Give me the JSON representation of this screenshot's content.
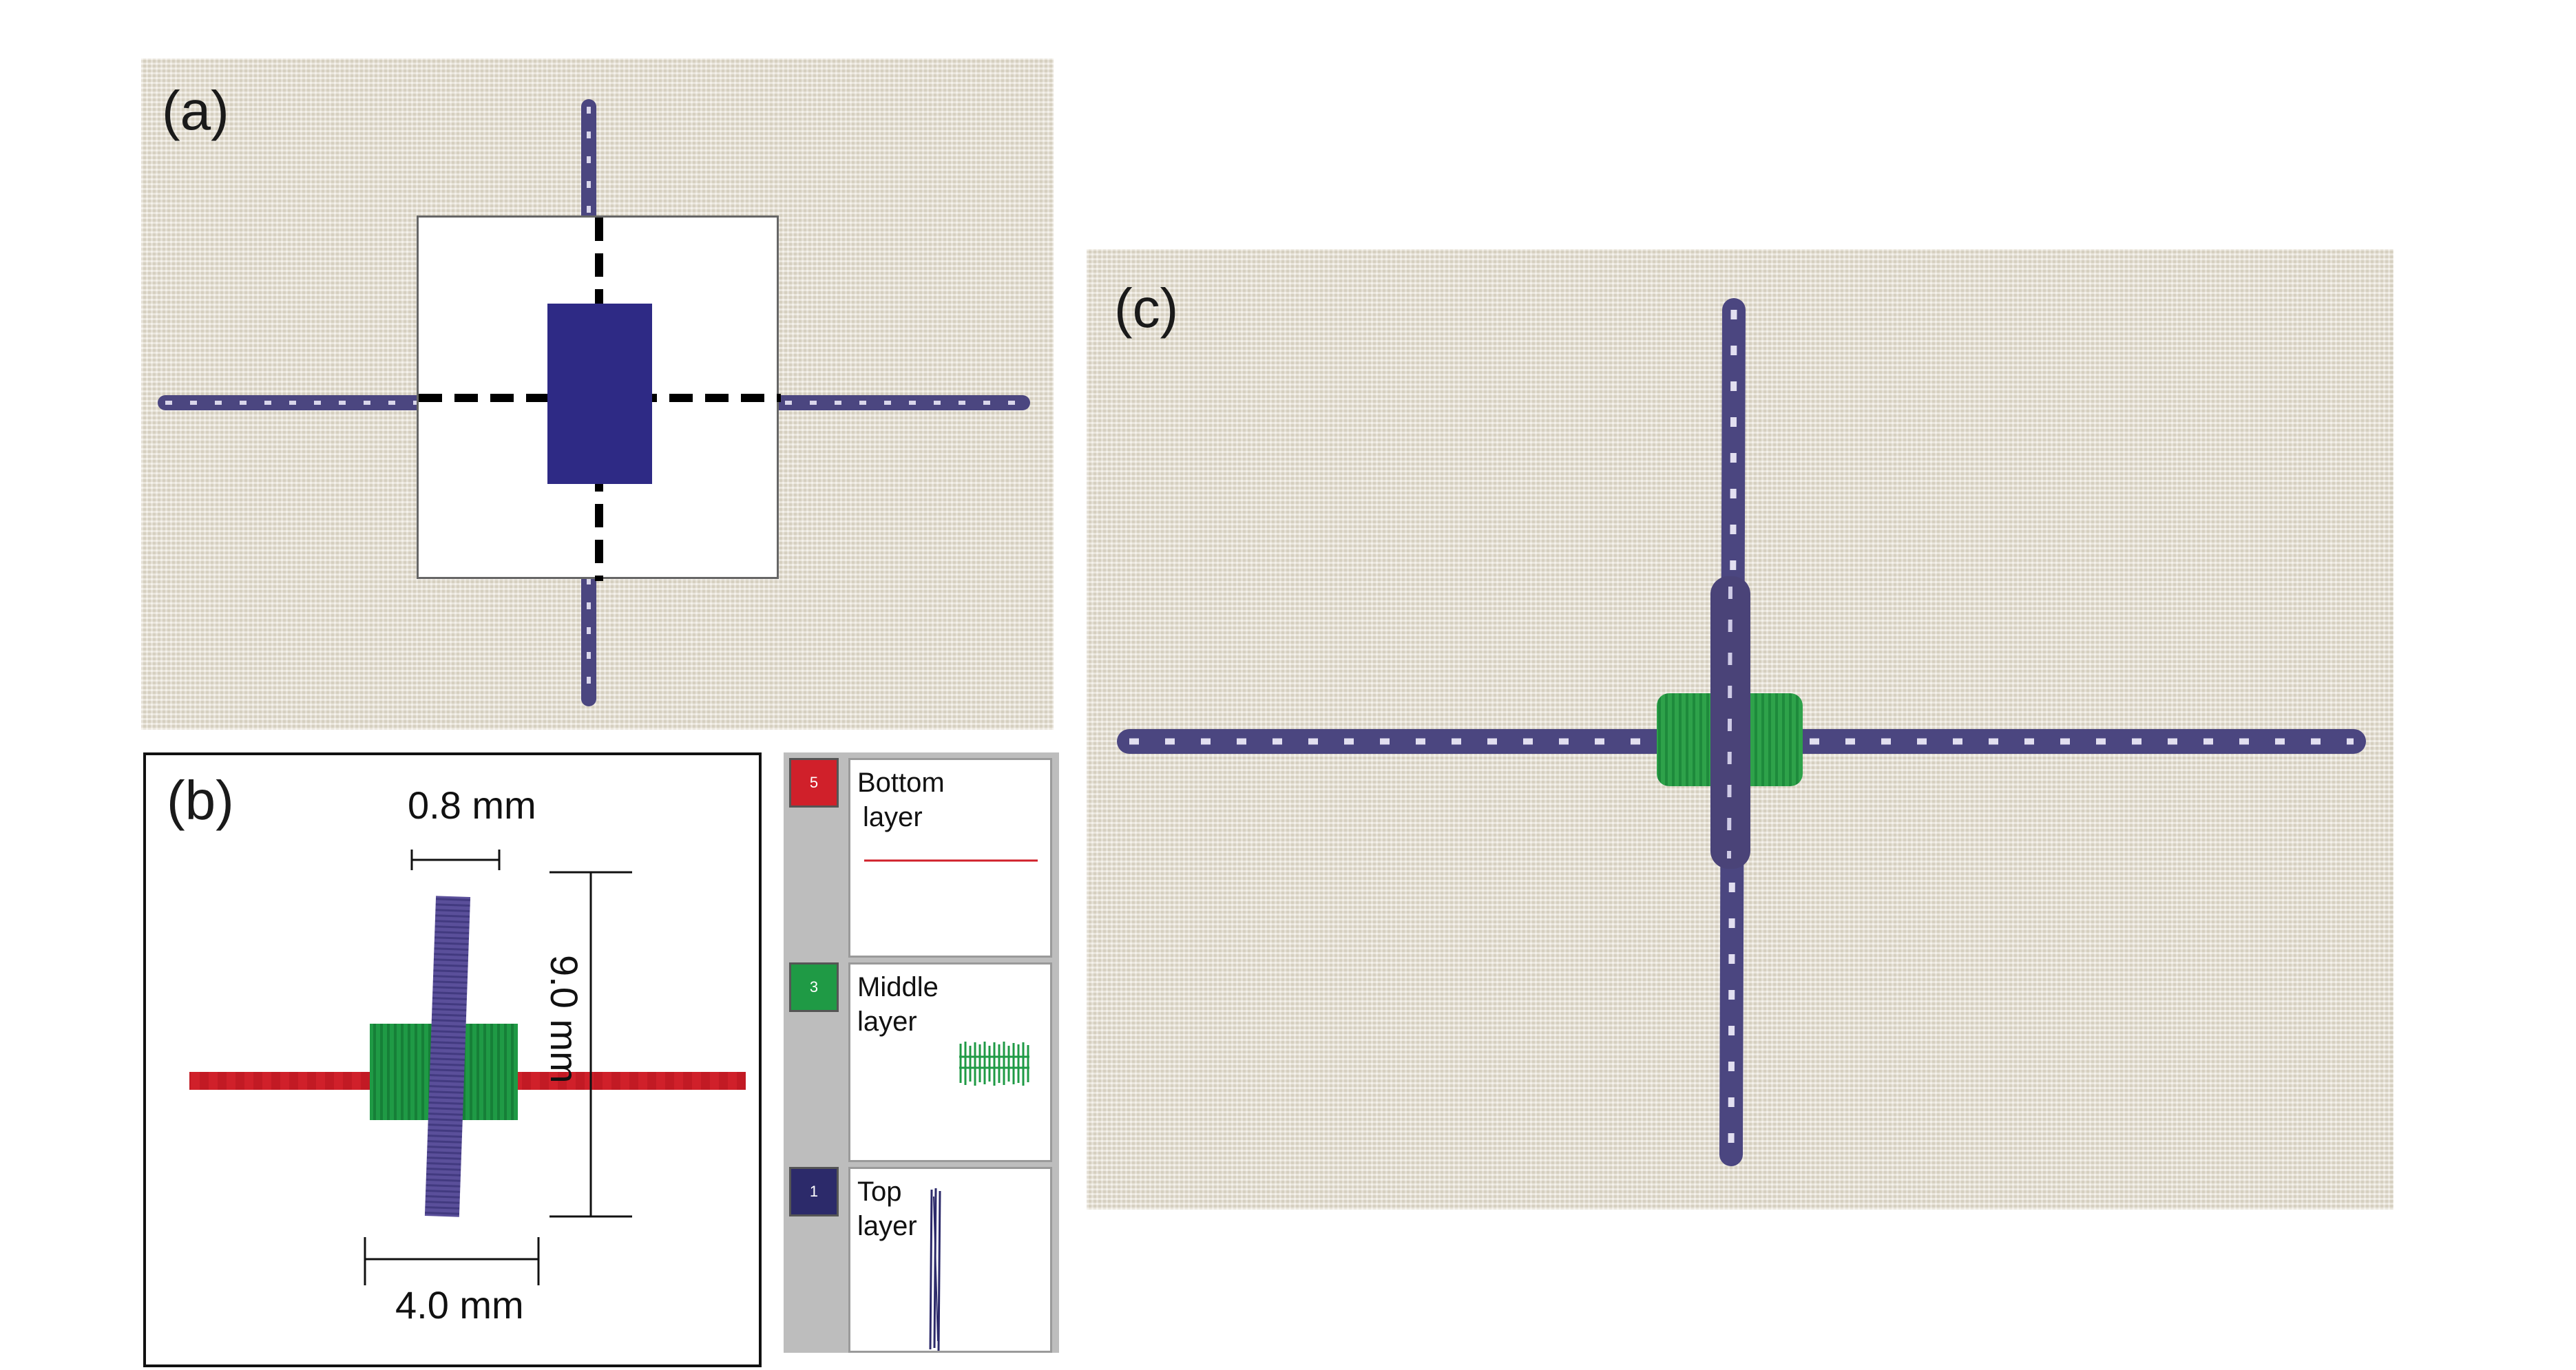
{
  "panels": {
    "a": {
      "label": "(a)"
    },
    "b": {
      "label": "(b)",
      "dim_width_top": "0.8 mm",
      "dim_height": "9.0 mm",
      "dim_width_bottom": "4.0 mm"
    },
    "c": {
      "label": "(c)"
    }
  },
  "layers": [
    {
      "number": "5",
      "title_line1": "Bottom",
      "title_line2": "layer",
      "color": "#d0202a"
    },
    {
      "number": "3",
      "title_line1": "Middle",
      "title_line2": "layer",
      "color": "#1f9a45"
    },
    {
      "number": "1",
      "title_line1": "Top",
      "title_line2": "layer",
      "color": "#2c2a6a"
    }
  ],
  "colors": {
    "thread_purple": "#4b4680",
    "green": "#1f9a45",
    "red": "#d0202a",
    "fabric": "#e7e1d3"
  }
}
